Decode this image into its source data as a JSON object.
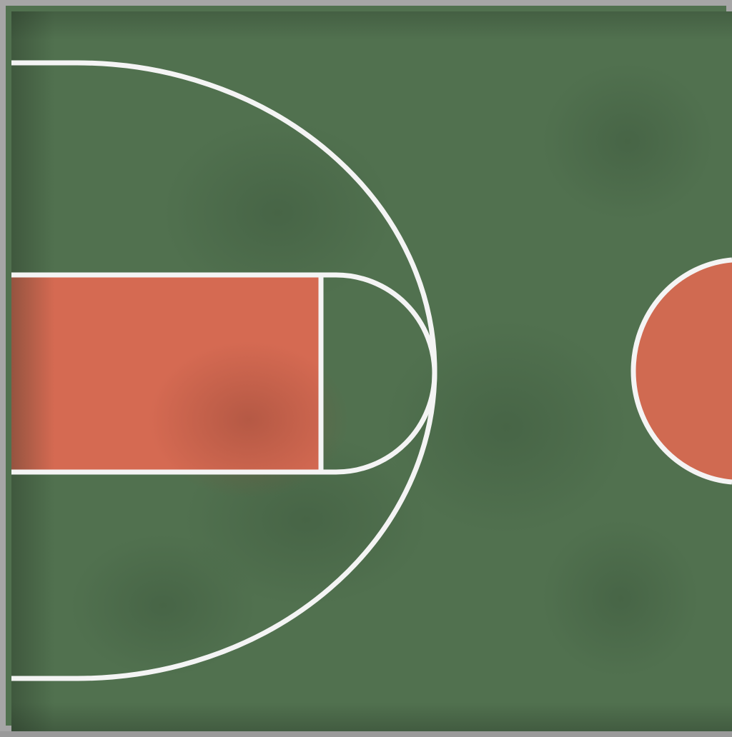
{
  "scene": {
    "type": "basketball-half-court-top-view",
    "colors": {
      "court_green": "#51714f",
      "court_green_dark": "#476547",
      "paint_orange": "#d56a52",
      "center_circle_orange": "#d06a51",
      "line_white": "#f4f4f4",
      "border_gray": "#a6a6a6"
    },
    "elements": [
      "court-surface",
      "three-point-arc",
      "paint-key",
      "free-throw-semicircle",
      "center-circle-half"
    ]
  }
}
